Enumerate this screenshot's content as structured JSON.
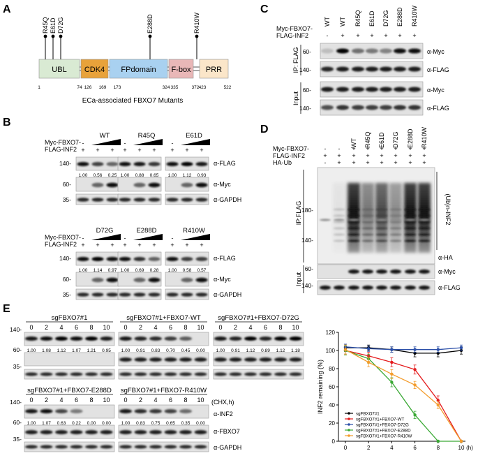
{
  "panels": {
    "A": {
      "letter": "A",
      "mutations": [
        "R45Q",
        "E61D",
        "D72G",
        "E288D",
        "R410W"
      ],
      "domains": [
        "UBL",
        "CDK4",
        "FPdomain",
        "F-box",
        "PRR"
      ],
      "positions": [
        "1",
        "74",
        "126",
        "169",
        "173",
        "324",
        "335",
        "372",
        "423",
        "522"
      ],
      "caption": "ECa-associated FBXO7 Mutants",
      "colors": {
        "ubl": "#d9ead3",
        "cdk4": "#e8a23a",
        "fp": "#a9d1f0",
        "fbox": "#e9b7b7",
        "prr": "#fbe6c9"
      }
    },
    "B": {
      "letter": "B",
      "row_labels": [
        "Myc-FBXO7-",
        "FLAG-INF2"
      ],
      "mw": [
        "140-",
        "60-",
        "35-"
      ],
      "antibodies": [
        "α-FLAG",
        "α-Myc",
        "α-GAPDH"
      ],
      "minus": "-",
      "plus": "+",
      "groups_top": [
        {
          "name": "WT",
          "values": [
            "1.00",
            "0.56",
            "0.25"
          ]
        },
        {
          "name": "R45Q",
          "values": [
            "1.00",
            "0.88",
            "0.65"
          ]
        },
        {
          "name": "E61D",
          "values": [
            "1.00",
            "1.12",
            "0.93"
          ]
        }
      ],
      "groups_bottom": [
        {
          "name": "D72G",
          "values": [
            "1.00",
            "1.14",
            "0.97"
          ]
        },
        {
          "name": "E288D",
          "values": [
            "1.00",
            "0.69",
            "0.28"
          ]
        },
        {
          "name": "R410W",
          "values": [
            "1.00",
            "0.58",
            "0.57"
          ]
        }
      ]
    },
    "C": {
      "letter": "C",
      "row_labels": [
        "Myc-FBXO7-",
        "FLAG-INF2"
      ],
      "lanes": [
        "WT",
        "WT",
        "R45Q",
        "E61D",
        "D72G",
        "E288D",
        "R410W"
      ],
      "signs": [
        "-",
        "+",
        "+",
        "+",
        "+",
        "+",
        "+"
      ],
      "section_labels": [
        "IP: FLAG",
        "Input"
      ],
      "mw": [
        "60-",
        "140-",
        "60-",
        "140-"
      ],
      "antibodies": [
        "α-Myc",
        "α-FLAG",
        "α-Myc",
        "α-FLAG"
      ]
    },
    "D": {
      "letter": "D",
      "row_labels": [
        "Myc-FBXO7-",
        "FLAG-INF2",
        "HA-Ub"
      ],
      "lanes": [
        "WT",
        "R45Q",
        "E61D",
        "D72G",
        "E288D",
        "R410W"
      ],
      "row1_signs": [
        "-",
        "-",
        "+",
        "+",
        "+",
        "+",
        "+",
        "+"
      ],
      "row2_signs": [
        "+",
        "+",
        "+",
        "+",
        "+",
        "+",
        "+",
        "+"
      ],
      "row3_signs": [
        "-",
        "+",
        "+",
        "+",
        "+",
        "+",
        "+",
        "+"
      ],
      "section_labels": [
        "IP:FLAG",
        "Input"
      ],
      "mw": [
        "180-",
        "140-",
        "60-",
        "140-"
      ],
      "ub_label": "(Ub)n-INF2",
      "antibodies": [
        "α-HA",
        "α-Myc",
        "α-FLAG"
      ]
    },
    "E": {
      "letter": "E",
      "mw": [
        "140-",
        "60-",
        "35-",
        "140-",
        "60-",
        "35-"
      ],
      "chx": "(CHX,h)",
      "antibodies": [
        "α-INF2",
        "α-FBXO7",
        "α-GAPDH"
      ],
      "blots": [
        {
          "title": "sgFBXO7#1",
          "times": [
            "0",
            "2",
            "4",
            "6",
            "8",
            "10"
          ],
          "values": [
            "1.00",
            "1.08",
            "1.12",
            "1.07",
            "1.21",
            "0.95"
          ]
        },
        {
          "title": "sgFBXO7#1+FBXO7-WT",
          "times": [
            "0",
            "2",
            "4",
            "6",
            "8",
            "10"
          ],
          "values": [
            "1.00",
            "0.91",
            "0.83",
            "0.70",
            "0.45",
            "0.00"
          ]
        },
        {
          "title": "sgFBXO7#1+FBXO7-D72G",
          "times": [
            "0",
            "2",
            "4",
            "6",
            "8",
            "10"
          ],
          "values": [
            "1.00",
            "0.91",
            "1.12",
            "0.89",
            "1.12",
            "1.18"
          ]
        },
        {
          "title": "sgFBXO7#1+FBXO7-E288D",
          "times": [
            "0",
            "2",
            "4",
            "6",
            "8",
            "10"
          ],
          "values": [
            "1.00",
            "1.07",
            "0.63",
            "0.22",
            "0.00",
            "0.00"
          ]
        },
        {
          "title": "sgFBXO7#1+FBXO7-R410W",
          "times": [
            "0",
            "2",
            "4",
            "6",
            "8",
            "10"
          ],
          "values": [
            "1.00",
            "0.83",
            "0.75",
            "0.65",
            "0.35",
            "0.00"
          ]
        }
      ]
    }
  },
  "chart_data": {
    "type": "line",
    "ylabel": "INF2 remaining (%)",
    "xunit": "(h)",
    "xlim": [
      0,
      10
    ],
    "ylim": [
      0,
      120
    ],
    "xticks": [
      0,
      2,
      4,
      6,
      8,
      10
    ],
    "yticks": [
      0,
      20,
      40,
      60,
      80,
      100,
      120
    ],
    "legend_position": "bottom-left",
    "series": [
      {
        "name": "sgFBXO7#1",
        "color": "#000000",
        "x": [
          0,
          2,
          4,
          6,
          8,
          10
        ],
        "y": [
          103,
          103,
          101,
          97,
          97,
          100
        ],
        "err": [
          4,
          3,
          3,
          4,
          4,
          4
        ]
      },
      {
        "name": "sgFBXO7#1+FBXO7-WT",
        "color": "#e41a1c",
        "x": [
          0,
          2,
          4,
          6,
          8,
          10
        ],
        "y": [
          100,
          94,
          87,
          79,
          45,
          0
        ],
        "err": [
          4,
          4,
          5,
          5,
          5,
          1
        ]
      },
      {
        "name": "sgFBXO7#1+FBXO7-D72G",
        "color": "#2b4fa8",
        "x": [
          0,
          2,
          4,
          6,
          8,
          10
        ],
        "y": [
          104,
          102,
          101,
          101,
          101,
          103
        ],
        "err": [
          3,
          3,
          3,
          3,
          3,
          3
        ]
      },
      {
        "name": "sgFBXO7#1+FBXO7-E288D",
        "color": "#3aa935",
        "x": [
          0,
          2,
          4,
          6,
          8,
          10
        ],
        "y": [
          100,
          91,
          65,
          29,
          0,
          0
        ],
        "err": [
          5,
          5,
          5,
          4,
          1,
          1
        ]
      },
      {
        "name": "sgFBXO7#1+FBXO7-R410W",
        "color": "#f39c2c",
        "x": [
          0,
          2,
          4,
          6,
          8,
          10
        ],
        "y": [
          101,
          87,
          74,
          62,
          40,
          0
        ],
        "err": [
          5,
          5,
          5,
          4,
          4,
          1
        ]
      }
    ]
  }
}
